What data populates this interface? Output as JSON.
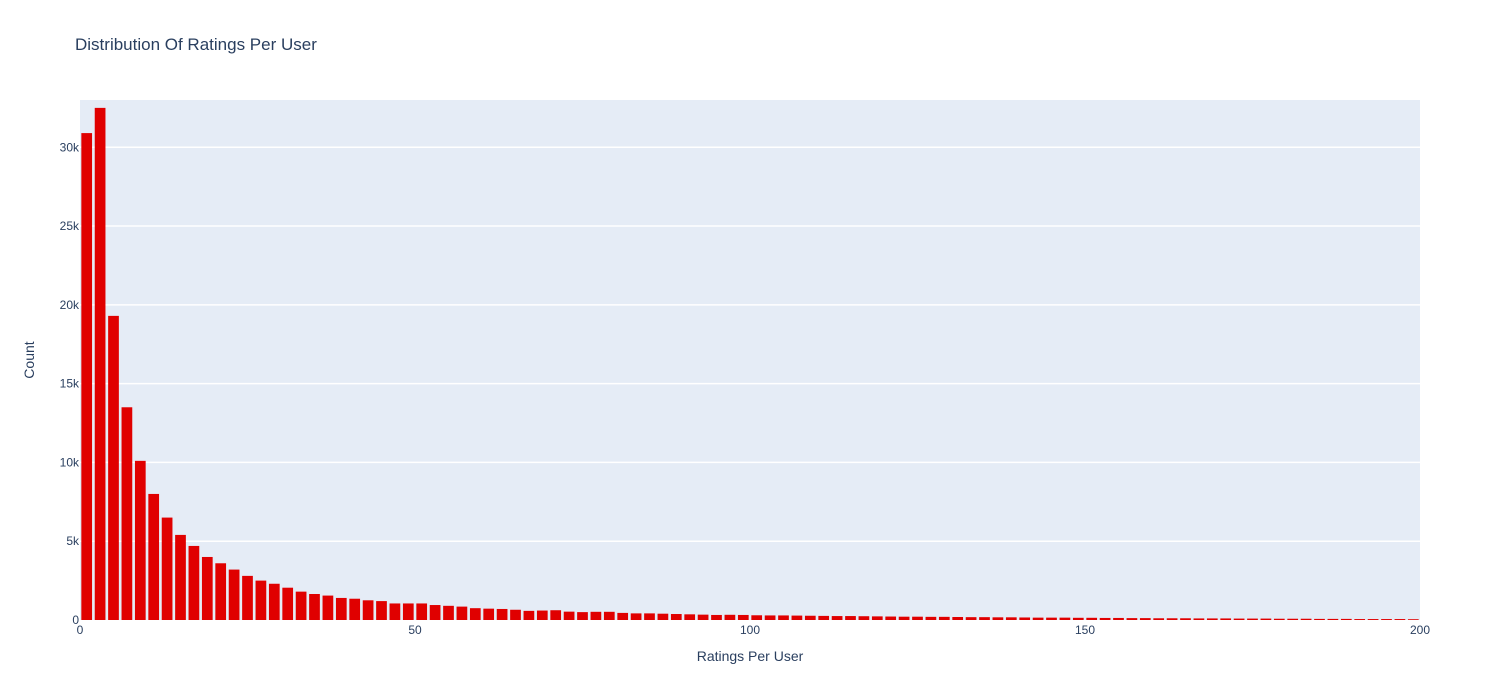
{
  "chart_data": {
    "type": "bar",
    "title": "Distribution Of Ratings Per User",
    "xlabel": "Ratings Per User",
    "ylabel": "Count",
    "xlim": [
      0,
      200
    ],
    "ylim": [
      0,
      33000
    ],
    "x_ticks": [
      0,
      50,
      100,
      150,
      200
    ],
    "x_tick_labels": [
      "0",
      "50",
      "100",
      "150",
      "200"
    ],
    "y_ticks": [
      0,
      5000,
      10000,
      15000,
      20000,
      25000,
      30000
    ],
    "y_tick_labels": [
      "0",
      "5k",
      "10k",
      "15k",
      "20k",
      "25k",
      "30k"
    ],
    "grid": true,
    "bin_width": 2,
    "bar_color": "#e00000",
    "plot_bg": "#e5ecf6",
    "grid_color": "#ffffff",
    "x": [
      1,
      3,
      5,
      7,
      9,
      11,
      13,
      15,
      17,
      19,
      21,
      23,
      25,
      27,
      29,
      31,
      33,
      35,
      37,
      39,
      41,
      43,
      45,
      47,
      49,
      51,
      53,
      55,
      57,
      59,
      61,
      63,
      65,
      67,
      69,
      71,
      73,
      75,
      77,
      79,
      81,
      83,
      85,
      87,
      89,
      91,
      93,
      95,
      97,
      99,
      101,
      103,
      105,
      107,
      109,
      111,
      113,
      115,
      117,
      119,
      121,
      123,
      125,
      127,
      129,
      131,
      133,
      135,
      137,
      139,
      141,
      143,
      145,
      147,
      149,
      151,
      153,
      155,
      157,
      159,
      161,
      163,
      165,
      167,
      169,
      171,
      173,
      175,
      177,
      179,
      181,
      183,
      185,
      187,
      189,
      191,
      193,
      195,
      197,
      199
    ],
    "values": [
      30900,
      32500,
      19300,
      13500,
      10100,
      8000,
      6500,
      5400,
      4700,
      4000,
      3600,
      3200,
      2800,
      2500,
      2300,
      2050,
      1800,
      1650,
      1550,
      1400,
      1350,
      1250,
      1200,
      1050,
      1050,
      1050,
      950,
      900,
      850,
      750,
      720,
      700,
      650,
      580,
      600,
      620,
      530,
      500,
      520,
      520,
      450,
      420,
      420,
      400,
      380,
      360,
      340,
      320,
      330,
      320,
      300,
      290,
      290,
      280,
      270,
      260,
      250,
      250,
      240,
      230,
      220,
      210,
      210,
      200,
      200,
      190,
      180,
      180,
      170,
      170,
      160,
      150,
      150,
      150,
      140,
      140,
      130,
      130,
      120,
      120,
      110,
      110,
      110,
      100,
      100,
      100,
      90,
      90,
      90,
      80,
      80,
      80,
      70,
      70,
      70,
      60,
      60,
      60,
      60,
      50
    ]
  }
}
